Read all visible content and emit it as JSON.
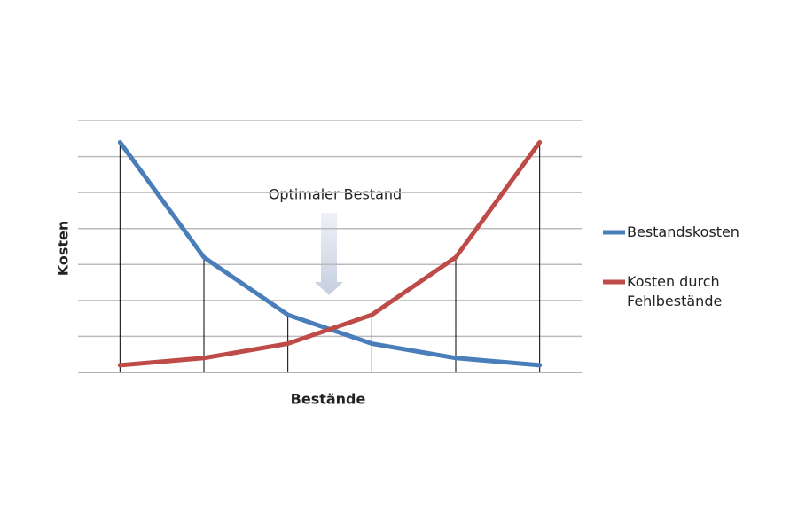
{
  "chart_data": {
    "type": "line",
    "annotation": "Optimaler Bestand",
    "x_label": "Bestände",
    "y_label": "Kosten",
    "categories": [
      null,
      null,
      null,
      null,
      null,
      null
    ],
    "series": [
      {
        "name": "Bestandskosten",
        "color": "#4a7ebb",
        "values": [
          6.4,
          3.2,
          1.6,
          0.8,
          0.4,
          0.2
        ]
      },
      {
        "name": "Kosten durch Fehlbestände",
        "color": "#be4b48",
        "values": [
          0.2,
          0.4,
          0.8,
          1.6,
          3.2,
          6.4
        ]
      }
    ],
    "ylim": [
      0,
      7
    ],
    "yticks": [
      0,
      1,
      2,
      3,
      4,
      5,
      6,
      7
    ],
    "grid": true
  }
}
